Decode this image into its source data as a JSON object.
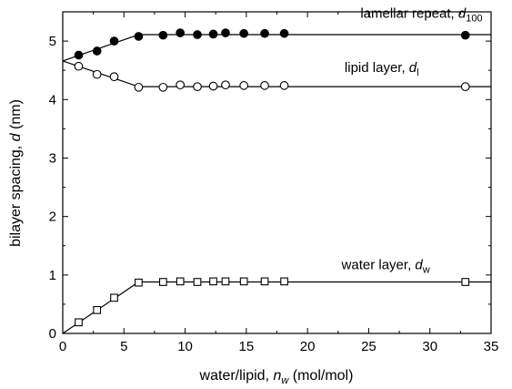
{
  "chart_data": {
    "type": "scatter",
    "xlabel": {
      "main": "water/lipid, ",
      "sym": "n",
      "sub": "w",
      "unit": " (mol/mol)"
    },
    "ylabel": {
      "main": "bilayer spacing, ",
      "sym": "d",
      "unit": " (nm)"
    },
    "xlim": [
      0,
      35
    ],
    "ylim": [
      0,
      5.5
    ],
    "xticks": [
      0,
      5,
      10,
      15,
      20,
      25,
      30,
      35
    ],
    "yticks": [
      0,
      1,
      2,
      3,
      4,
      5
    ],
    "grid": false,
    "series": [
      {
        "key": "repeat",
        "marker": "filled-circle",
        "x": [
          1.3,
          2.8,
          4.2,
          6.2,
          8.2,
          9.6,
          11.0,
          12.3,
          13.3,
          14.8,
          16.5,
          18.1,
          32.9
        ],
        "y": [
          4.76,
          4.83,
          5.0,
          5.08,
          5.1,
          5.14,
          5.11,
          5.12,
          5.14,
          5.13,
          5.13,
          5.13,
          5.1
        ],
        "fit_x": [
          0,
          6.2,
          35
        ],
        "fit_y": [
          4.66,
          5.11,
          5.11
        ]
      },
      {
        "key": "lipid",
        "marker": "open-circle",
        "x": [
          1.3,
          2.8,
          4.2,
          6.2,
          8.2,
          9.6,
          11.0,
          12.3,
          13.3,
          14.8,
          16.5,
          18.1,
          32.9
        ],
        "y": [
          4.57,
          4.43,
          4.39,
          4.21,
          4.21,
          4.25,
          4.22,
          4.23,
          4.25,
          4.24,
          4.24,
          4.24,
          4.22
        ],
        "fit_x": [
          0,
          6.2,
          35
        ],
        "fit_y": [
          4.66,
          4.22,
          4.22
        ]
      },
      {
        "key": "water",
        "marker": "open-square",
        "x": [
          1.3,
          2.8,
          4.2,
          6.2,
          8.2,
          9.6,
          11.0,
          12.3,
          13.3,
          14.8,
          16.5,
          18.1,
          32.9
        ],
        "y": [
          0.19,
          0.4,
          0.61,
          0.87,
          0.88,
          0.89,
          0.88,
          0.89,
          0.89,
          0.89,
          0.89,
          0.89,
          0.88
        ],
        "fit_x": [
          0,
          6.2,
          35
        ],
        "fit_y": [
          0,
          0.88,
          0.88
        ]
      }
    ],
    "annotations": [
      {
        "key": "repeat",
        "main": "lamellar repeat, ",
        "sym": "d",
        "sub": "100",
        "x": 34.3,
        "y": 5.4
      },
      {
        "key": "lipid",
        "main": "lipid layer, ",
        "sym": "d",
        "sub": "l",
        "x": 29.1,
        "y": 4.47
      },
      {
        "key": "water",
        "main": "water layer, ",
        "sym": "d",
        "sub": "w",
        "x": 30.0,
        "y": 1.1
      }
    ]
  }
}
